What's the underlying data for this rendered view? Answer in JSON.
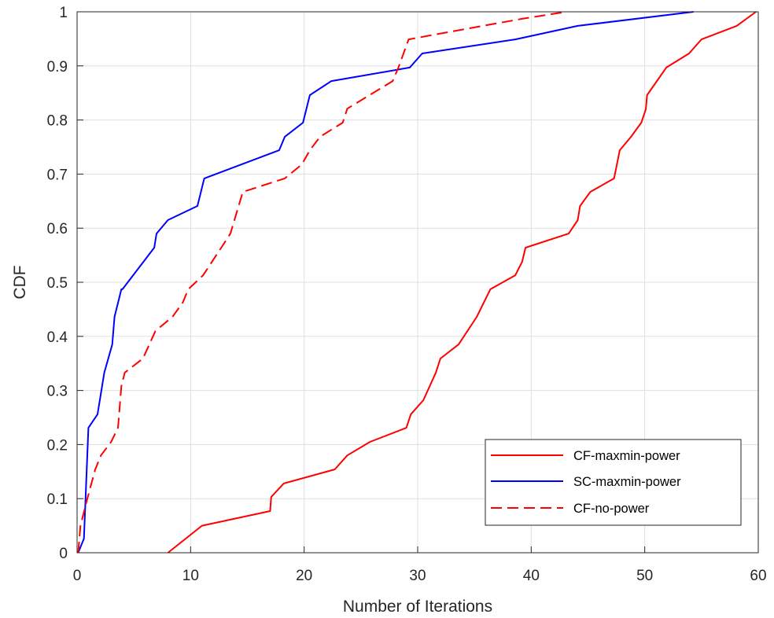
{
  "chart_data": {
    "type": "line",
    "title": "",
    "xlabel": "Number of Iterations",
    "ylabel": "CDF",
    "xlim": [
      0,
      60
    ],
    "ylim": [
      0,
      1
    ],
    "xticks": [
      0,
      10,
      20,
      30,
      40,
      50,
      60
    ],
    "yticks": [
      0,
      0.1,
      0.2,
      0.3,
      0.4,
      0.5,
      0.6,
      0.7,
      0.8,
      0.9,
      1
    ],
    "xtick_labels": [
      "0",
      "10",
      "20",
      "30",
      "40",
      "50",
      "60"
    ],
    "ytick_labels": [
      "0",
      "0.1",
      "0.2",
      "0.3",
      "0.4",
      "0.5",
      "0.6",
      "0.7",
      "0.8",
      "0.9",
      "1"
    ],
    "grid": true,
    "legend_position": "bottom-right",
    "series": [
      {
        "name": "CF-maxmin-power",
        "color": "#ff0000",
        "dash": "solid",
        "x": [
          8,
          11,
          17,
          17.1,
          18.2,
          22.7,
          23.8,
          25.8,
          29,
          29.4,
          30.5,
          31.6,
          32,
          33.6,
          35.2,
          36.4,
          38.6,
          39.2,
          39.5,
          43.3,
          44.1,
          44.3,
          45.2,
          47.3,
          47.8,
          48.8,
          49.7,
          50.1,
          50.2,
          51.9,
          53.9,
          55,
          58.1,
          59.8
        ],
        "y": [
          0,
          0.05,
          0.077,
          0.103,
          0.128,
          0.154,
          0.18,
          0.205,
          0.231,
          0.256,
          0.282,
          0.333,
          0.359,
          0.385,
          0.436,
          0.487,
          0.513,
          0.538,
          0.564,
          0.59,
          0.615,
          0.641,
          0.667,
          0.692,
          0.744,
          0.769,
          0.795,
          0.82,
          0.846,
          0.897,
          0.923,
          0.949,
          0.974,
          1
        ]
      },
      {
        "name": "SC-maxmin-power",
        "color": "#0000ff",
        "dash": "solid",
        "x": [
          0.1,
          0.6,
          1,
          1.8,
          2.2,
          2.4,
          3.1,
          3.3,
          3.9,
          4,
          6.8,
          7,
          8,
          10.6,
          11.2,
          17.8,
          18.3,
          19.9,
          20.5,
          22.4,
          29.3,
          30.4,
          38.6,
          44.1,
          54.3
        ],
        "y": [
          0,
          0.026,
          0.231,
          0.256,
          0.308,
          0.333,
          0.385,
          0.436,
          0.487,
          0.487,
          0.564,
          0.59,
          0.615,
          0.641,
          0.692,
          0.744,
          0.769,
          0.795,
          0.846,
          0.872,
          0.897,
          0.923,
          0.949,
          0.974,
          1
        ]
      },
      {
        "name": "CF-no-power",
        "color": "#ff0000",
        "dash": "dashed",
        "x": [
          0.1,
          0.3,
          0.9,
          1.6,
          2.1,
          3,
          3.6,
          3.9,
          4.2,
          5.8,
          6.9,
          8.4,
          9.3,
          9.8,
          11.1,
          12.7,
          13.5,
          14.6,
          18.3,
          19.8,
          20.5,
          21.4,
          23.4,
          23.8,
          27.8,
          28.3,
          29.2,
          32.6,
          39.2,
          43.1
        ],
        "y": [
          0,
          0.05,
          0.1,
          0.154,
          0.18,
          0.205,
          0.231,
          0.308,
          0.333,
          0.359,
          0.41,
          0.436,
          0.462,
          0.487,
          0.513,
          0.564,
          0.59,
          0.667,
          0.692,
          0.718,
          0.744,
          0.769,
          0.795,
          0.821,
          0.872,
          0.897,
          0.949,
          0.962,
          0.987,
          1
        ]
      }
    ]
  }
}
